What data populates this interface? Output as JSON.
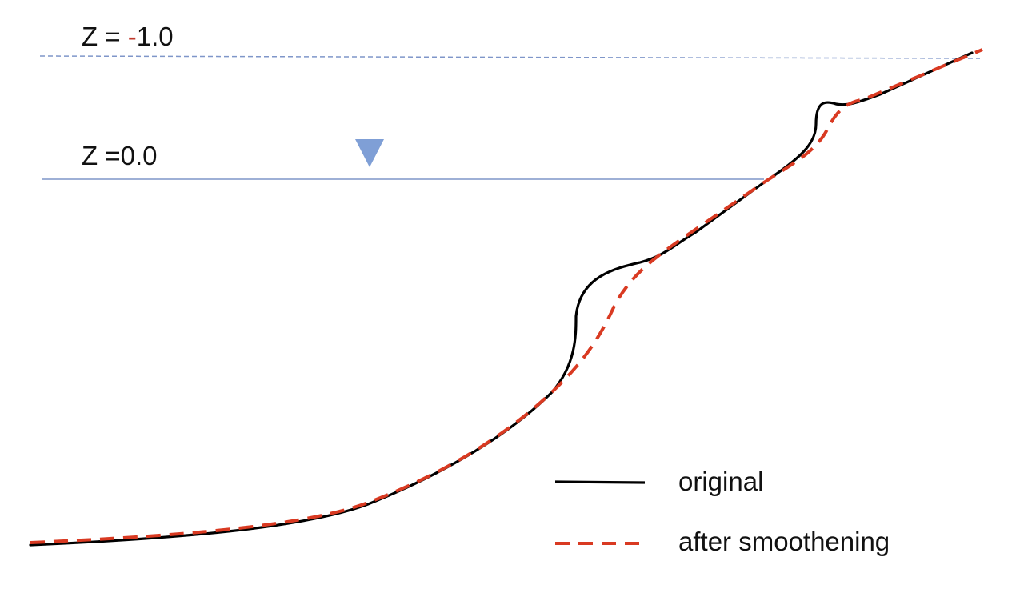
{
  "levels": {
    "upper": {
      "prefix": "Z = ",
      "sign": "-",
      "value": "1.0",
      "sign_color": "#c0392b"
    },
    "water": {
      "text": "Z =0.0"
    }
  },
  "legend": {
    "original": "original",
    "smoothed": "after smoothening"
  },
  "colors": {
    "upper_line": "#7f96c9",
    "water_line": "#7f96c9",
    "water_marker": "#7f9fd6",
    "original": "#000000",
    "smoothed": "#d93a22",
    "text": "#111111"
  },
  "icons": {
    "water_marker": "inverted-triangle"
  }
}
